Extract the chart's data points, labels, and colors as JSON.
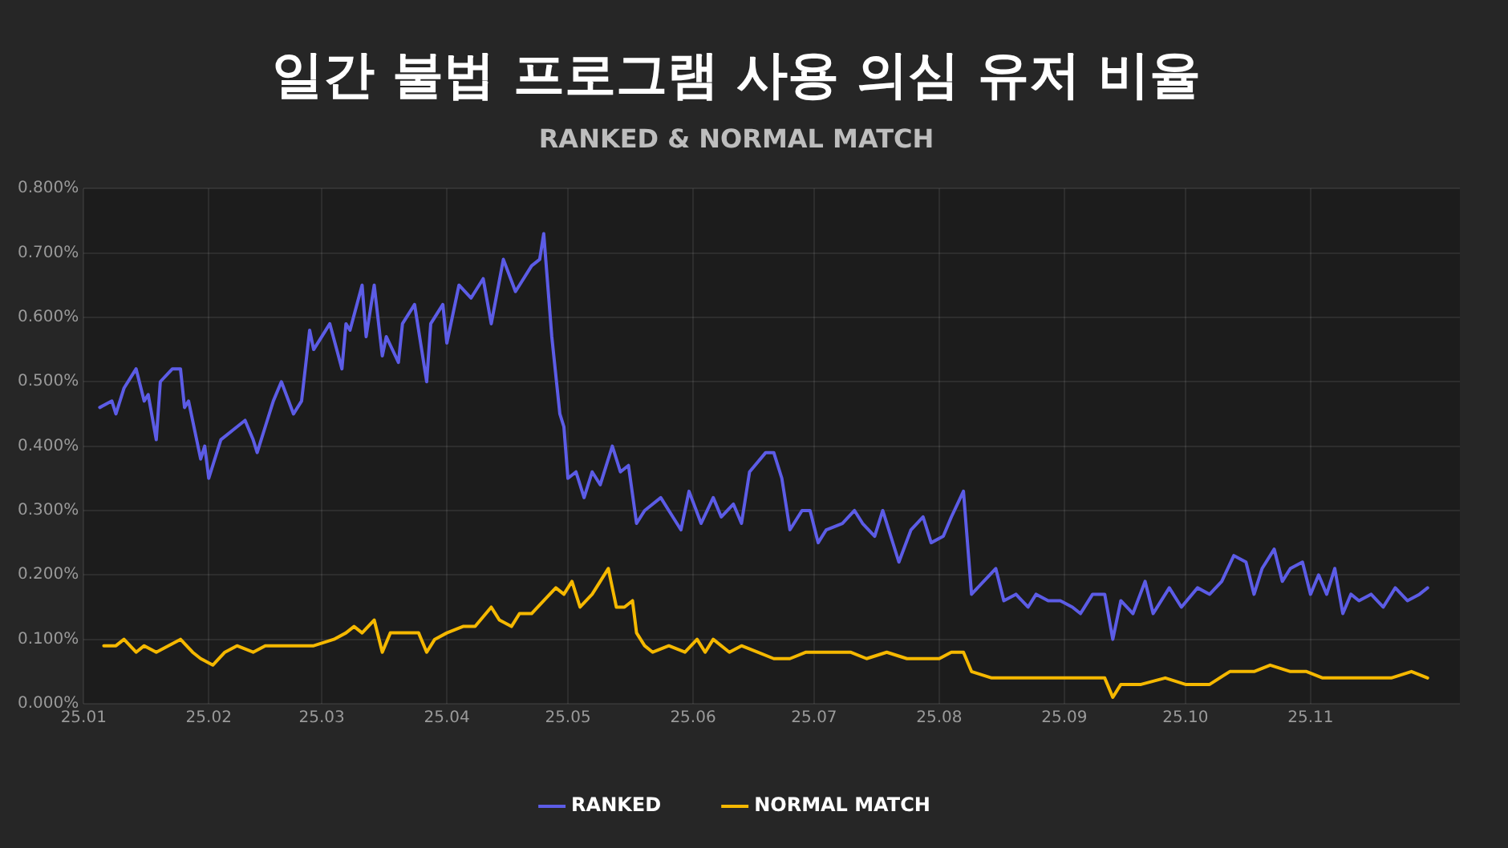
{
  "chart_data": {
    "type": "line",
    "title": "일간 불법 프로그램 사용 의심 유저 비율",
    "subtitle": "RANKED & NORMAL MATCH",
    "xlim": [
      "--01-01",
      "--12-08"
    ],
    "xticks": [
      {
        "value": "--01-01",
        "label": "25.01"
      },
      {
        "value": "--02-01",
        "label": "25.02"
      },
      {
        "value": "--03-01",
        "label": "25.03"
      },
      {
        "value": "--04-01",
        "label": "25.04"
      },
      {
        "value": "--05-01",
        "label": "25.05"
      },
      {
        "value": "--06-01",
        "label": "25.06"
      },
      {
        "value": "--07-01",
        "label": "25.07"
      },
      {
        "value": "--08-01",
        "label": "25.08"
      },
      {
        "value": "--09-01",
        "label": "25.09"
      },
      {
        "value": "--10-01",
        "label": "25.10"
      },
      {
        "value": "--11-01",
        "label": "25.11"
      }
    ],
    "ylim": [
      0,
      0.8
    ],
    "yticks": [
      {
        "value": 0,
        "label": "0.000%"
      },
      {
        "value": 0.1,
        "label": "0.100%"
      },
      {
        "value": 0.2,
        "label": "0.200%"
      },
      {
        "value": 0.3,
        "label": "0.300%"
      },
      {
        "value": 0.4,
        "label": "0.400%"
      },
      {
        "value": 0.5,
        "label": "0.500%"
      },
      {
        "value": 0.6,
        "label": "0.600%"
      },
      {
        "value": 0.7,
        "label": "0.700%"
      },
      {
        "value": 0.8,
        "label": "0.800%"
      }
    ],
    "grid": true,
    "legend": "bottom",
    "marker": "none",
    "line_style": "solid",
    "series": [
      {
        "name": "RANKED",
        "color": "#5c5ce6",
        "x": [
          "--01-05",
          "--01-08",
          "--01-09",
          "--01-11",
          "--01-14",
          "--01-16",
          "--01-17",
          "--01-19",
          "--01-20",
          "--01-23",
          "--01-25",
          "--01-26",
          "--01-27",
          "--01-30",
          "--01-31",
          "--02-01",
          "--02-04",
          "--02-08",
          "--02-10",
          "--02-12",
          "--02-13",
          "--02-15",
          "--02-17",
          "--02-19",
          "--02-22",
          "--02-24",
          "--02-26",
          "--02-27",
          "--03-03",
          "--03-06",
          "--03-07",
          "--03-08",
          "--03-11",
          "--03-12",
          "--03-14",
          "--03-16",
          "--03-17",
          "--03-20",
          "--03-21",
          "--03-24",
          "--03-27",
          "--03-28",
          "--03-31",
          "--04-01",
          "--04-04",
          "--04-07",
          "--04-10",
          "--04-12",
          "--04-15",
          "--04-18",
          "--04-19",
          "--04-22",
          "--04-24",
          "--04-25",
          "--04-27",
          "--04-29",
          "--04-30",
          "--05-01",
          "--05-03",
          "--05-05",
          "--05-07",
          "--05-09",
          "--05-12",
          "--05-14",
          "--05-16",
          "--05-18",
          "--05-20",
          "--05-24",
          "--05-26",
          "--05-29",
          "--05-31",
          "--06-03",
          "--06-06",
          "--06-08",
          "--06-11",
          "--06-13",
          "--06-15",
          "--06-19",
          "--06-21",
          "--06-23",
          "--06-25",
          "--06-28",
          "--06-30",
          "--07-02",
          "--07-04",
          "--07-08",
          "--07-11",
          "--07-13",
          "--07-16",
          "--07-18",
          "--07-20",
          "--07-22",
          "--07-25",
          "--07-28",
          "--07-30",
          "--08-02",
          "--08-04",
          "--08-07",
          "--08-09",
          "--08-12",
          "--08-15",
          "--08-17",
          "--08-20",
          "--08-23",
          "--08-25",
          "--08-28",
          "--08-31",
          "--09-03",
          "--09-05",
          "--09-08",
          "--09-11",
          "--09-13",
          "--09-15",
          "--09-18",
          "--09-21",
          "--09-23",
          "--09-27",
          "--09-30",
          "--10-04",
          "--10-07",
          "--10-10",
          "--10-13",
          "--10-16",
          "--10-18",
          "--10-20",
          "--10-23",
          "--10-25",
          "--10-27",
          "--10-30",
          "--11-01",
          "--11-03",
          "--11-05",
          "--11-07",
          "--11-09",
          "--11-11",
          "--11-13",
          "--11-16",
          "--11-19",
          "--11-22",
          "--11-25",
          "--11-28",
          "--11-30"
        ],
        "values": [
          0.46,
          0.47,
          0.45,
          0.49,
          0.52,
          0.47,
          0.48,
          0.41,
          0.5,
          0.52,
          0.52,
          0.46,
          0.47,
          0.38,
          0.4,
          0.35,
          0.41,
          0.43,
          0.44,
          0.41,
          0.39,
          0.43,
          0.47,
          0.5,
          0.45,
          0.47,
          0.58,
          0.55,
          0.59,
          0.52,
          0.59,
          0.58,
          0.65,
          0.57,
          0.65,
          0.54,
          0.57,
          0.53,
          0.59,
          0.62,
          0.5,
          0.59,
          0.62,
          0.56,
          0.65,
          0.63,
          0.66,
          0.59,
          0.69,
          0.64,
          0.65,
          0.68,
          0.69,
          0.73,
          0.57,
          0.45,
          0.43,
          0.35,
          0.36,
          0.32,
          0.36,
          0.34,
          0.4,
          0.36,
          0.37,
          0.28,
          0.3,
          0.32,
          0.3,
          0.27,
          0.33,
          0.28,
          0.32,
          0.29,
          0.31,
          0.28,
          0.36,
          0.39,
          0.39,
          0.35,
          0.27,
          0.3,
          0.3,
          0.25,
          0.27,
          0.28,
          0.3,
          0.28,
          0.26,
          0.3,
          0.26,
          0.22,
          0.27,
          0.29,
          0.25,
          0.26,
          0.29,
          0.33,
          0.17,
          0.19,
          0.21,
          0.16,
          0.17,
          0.15,
          0.17,
          0.16,
          0.16,
          0.15,
          0.14,
          0.17,
          0.17,
          0.1,
          0.16,
          0.14,
          0.19,
          0.14,
          0.18,
          0.15,
          0.18,
          0.17,
          0.19,
          0.23,
          0.22,
          0.17,
          0.21,
          0.24,
          0.19,
          0.21,
          0.22,
          0.17,
          0.2,
          0.17,
          0.21,
          0.14,
          0.17,
          0.16,
          0.17,
          0.15,
          0.18,
          0.16,
          0.17,
          0.18
        ]
      },
      {
        "name": "NORMAL MATCH",
        "color": "#f5b800",
        "x": [
          "--01-06",
          "--01-09",
          "--01-11",
          "--01-14",
          "--01-16",
          "--01-19",
          "--01-22",
          "--01-25",
          "--01-28",
          "--01-30",
          "--02-02",
          "--02-05",
          "--02-08",
          "--02-12",
          "--02-15",
          "--02-19",
          "--02-23",
          "--02-27",
          "--03-04",
          "--03-07",
          "--03-09",
          "--03-11",
          "--03-14",
          "--03-16",
          "--03-18",
          "--03-21",
          "--03-25",
          "--03-27",
          "--03-29",
          "--04-01",
          "--04-05",
          "--04-08",
          "--04-12",
          "--04-14",
          "--04-17",
          "--04-19",
          "--04-22",
          "--04-25",
          "--04-28",
          "--04-30",
          "--05-02",
          "--05-04",
          "--05-07",
          "--05-09",
          "--05-11",
          "--05-13",
          "--05-15",
          "--05-17",
          "--05-18",
          "--05-20",
          "--05-22",
          "--05-26",
          "--05-30",
          "--06-02",
          "--06-04",
          "--06-06",
          "--06-10",
          "--06-13",
          "--06-17",
          "--06-21",
          "--06-25",
          "--06-29",
          "--07-04",
          "--07-10",
          "--07-14",
          "--07-19",
          "--07-24",
          "--07-28",
          "--08-01",
          "--08-04",
          "--08-07",
          "--08-09",
          "--08-14",
          "--08-16",
          "--08-20",
          "--08-25",
          "--08-31",
          "--09-05",
          "--09-11",
          "--09-13",
          "--09-15",
          "--09-20",
          "--09-26",
          "--10-01",
          "--10-07",
          "--10-12",
          "--10-18",
          "--10-22",
          "--10-27",
          "--10-31",
          "--11-04",
          "--11-10",
          "--11-15",
          "--11-21",
          "--11-26",
          "--11-30"
        ],
        "values": [
          0.09,
          0.09,
          0.1,
          0.08,
          0.09,
          0.08,
          0.09,
          0.1,
          0.08,
          0.07,
          0.06,
          0.08,
          0.09,
          0.08,
          0.09,
          0.09,
          0.09,
          0.09,
          0.1,
          0.11,
          0.12,
          0.11,
          0.13,
          0.08,
          0.11,
          0.11,
          0.11,
          0.08,
          0.1,
          0.11,
          0.12,
          0.12,
          0.15,
          0.13,
          0.12,
          0.14,
          0.14,
          0.16,
          0.18,
          0.17,
          0.19,
          0.15,
          0.17,
          0.19,
          0.21,
          0.15,
          0.15,
          0.16,
          0.11,
          0.09,
          0.08,
          0.09,
          0.08,
          0.1,
          0.08,
          0.1,
          0.08,
          0.09,
          0.08,
          0.07,
          0.07,
          0.08,
          0.08,
          0.08,
          0.07,
          0.08,
          0.07,
          0.07,
          0.07,
          0.08,
          0.08,
          0.05,
          0.04,
          0.04,
          0.04,
          0.04,
          0.04,
          0.04,
          0.04,
          0.01,
          0.03,
          0.03,
          0.04,
          0.03,
          0.03,
          0.05,
          0.05,
          0.06,
          0.05,
          0.05,
          0.04,
          0.04,
          0.04,
          0.04,
          0.05,
          0.04
        ]
      }
    ]
  }
}
